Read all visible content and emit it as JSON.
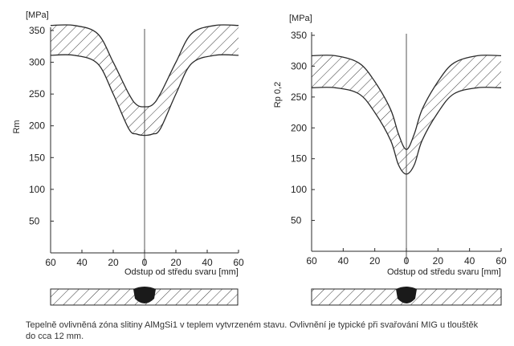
{
  "chart_data": [
    {
      "type": "area",
      "unit_label": "[MPa]",
      "ylabel": "Rm",
      "xlabel": "Odstup od středu svaru [mm]",
      "xlim": [
        -60,
        60
      ],
      "ylim": [
        0,
        370
      ],
      "x_tick_labels": [
        "60",
        "40",
        "20",
        "0",
        "20",
        "40",
        "60"
      ],
      "y_ticks": [
        50,
        100,
        150,
        200,
        250,
        300,
        350
      ],
      "grid": false,
      "band": {
        "x": [
          -60,
          -45,
          -30,
          -20,
          -10,
          -5,
          0,
          5,
          10,
          20,
          30,
          45,
          60
        ],
        "upper": [
          358,
          358,
          345,
          300,
          250,
          233,
          230,
          233,
          250,
          300,
          345,
          358,
          358
        ],
        "lower": [
          311,
          311,
          298,
          250,
          195,
          187,
          185,
          187,
          195,
          250,
          298,
          311,
          311
        ]
      }
    },
    {
      "type": "area",
      "unit_label": "[MPa]",
      "ylabel": "Rp 0,2",
      "xlabel": "Odstup od středu svaru [mm]",
      "xlim": [
        -60,
        60
      ],
      "ylim": [
        0,
        370
      ],
      "x_tick_labels": [
        "60",
        "40",
        "20",
        "0",
        "20",
        "40",
        "60"
      ],
      "y_ticks": [
        50,
        100,
        150,
        200,
        250,
        300,
        350
      ],
      "grid": false,
      "band": {
        "x": [
          -60,
          -45,
          -30,
          -20,
          -10,
          -5,
          0,
          5,
          10,
          20,
          30,
          45,
          60
        ],
        "upper": [
          317,
          317,
          305,
          275,
          230,
          190,
          165,
          190,
          230,
          275,
          305,
          317,
          317
        ],
        "lower": [
          265,
          265,
          255,
          225,
          180,
          140,
          125,
          140,
          180,
          225,
          255,
          265,
          265
        ]
      }
    }
  ],
  "caption": {
    "line1": "Tepelně ovlivněná zóna slitiny AlMgSi1 v teplem vytvrzeném stavu. Ovlivnění je typické při svařování MIG u tlouštěk",
    "line2": "do cca 12 mm."
  },
  "colors": {
    "line": "#2a2a2a",
    "hatch": "#3a3a3a",
    "weld": "#1a1a1a"
  }
}
